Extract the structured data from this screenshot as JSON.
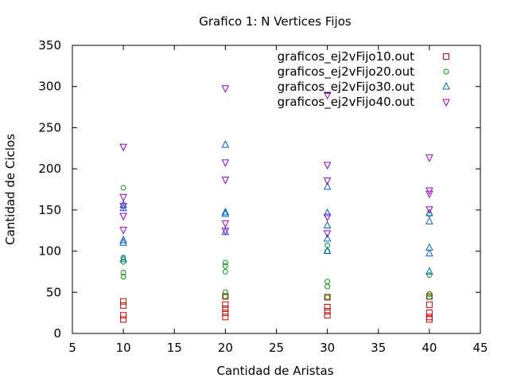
{
  "chart_data": {
    "type": "scatter",
    "title": "Grafico 1: N Vertices Fijos",
    "xlabel": "Cantidad de Aristas",
    "ylabel": "Cantidad de Ciclos",
    "xlim": [
      5,
      45
    ],
    "ylim": [
      0,
      350
    ],
    "xticks": [
      "5",
      "10",
      "15",
      "20",
      "25",
      "30",
      "35",
      "40",
      "45"
    ],
    "yticks": [
      "0",
      "50",
      "100",
      "150",
      "200",
      "250",
      "300",
      "350"
    ],
    "grid": false,
    "legend_position": "top-right",
    "series": [
      {
        "name": "graficos_ej2vFijo10.out",
        "color": "#cc0000",
        "marker": "square",
        "points": [
          [
            10,
            17
          ],
          [
            10,
            22
          ],
          [
            10,
            34
          ],
          [
            10,
            39
          ],
          [
            20,
            20
          ],
          [
            20,
            25
          ],
          [
            20,
            30
          ],
          [
            20,
            35
          ],
          [
            20,
            45
          ],
          [
            30,
            22
          ],
          [
            30,
            27
          ],
          [
            30,
            32
          ],
          [
            30,
            44
          ],
          [
            40,
            17
          ],
          [
            40,
            20
          ],
          [
            40,
            25
          ],
          [
            40,
            35
          ],
          [
            40,
            45
          ]
        ]
      },
      {
        "name": "graficos_ej2vFijo20.out",
        "color": "#009900",
        "marker": "circle",
        "points": [
          [
            10,
            69
          ],
          [
            10,
            74
          ],
          [
            10,
            87
          ],
          [
            10,
            92
          ],
          [
            10,
            177
          ],
          [
            20,
            45
          ],
          [
            20,
            50
          ],
          [
            20,
            75
          ],
          [
            20,
            82
          ],
          [
            20,
            86
          ],
          [
            30,
            44
          ],
          [
            30,
            57
          ],
          [
            30,
            63
          ],
          [
            30,
            100
          ],
          [
            30,
            107
          ],
          [
            40,
            44
          ],
          [
            40,
            48
          ],
          [
            40,
            71
          ],
          [
            40,
            145
          ]
        ]
      },
      {
        "name": "graficos_ej2vFijo30.out",
        "color": "#0066cc",
        "marker": "triangle-up",
        "points": [
          [
            10,
            90
          ],
          [
            10,
            110
          ],
          [
            10,
            113
          ],
          [
            10,
            152
          ],
          [
            10,
            156
          ],
          [
            20,
            123
          ],
          [
            20,
            145
          ],
          [
            20,
            147
          ],
          [
            20,
            229
          ],
          [
            30,
            100
          ],
          [
            30,
            115
          ],
          [
            30,
            131
          ],
          [
            30,
            146
          ],
          [
            30,
            178
          ],
          [
            40,
            75
          ],
          [
            40,
            97
          ],
          [
            40,
            104
          ],
          [
            40,
            136
          ],
          [
            40,
            146
          ]
        ]
      },
      {
        "name": "graficos_ej2vFijo40.out",
        "color": "#9900cc",
        "marker": "triangle-down",
        "points": [
          [
            10,
            126
          ],
          [
            10,
            143
          ],
          [
            10,
            155
          ],
          [
            10,
            166
          ],
          [
            10,
            227
          ],
          [
            20,
            125
          ],
          [
            20,
            134
          ],
          [
            20,
            187
          ],
          [
            20,
            208
          ],
          [
            20,
            298
          ],
          [
            30,
            122
          ],
          [
            30,
            142
          ],
          [
            30,
            186
          ],
          [
            30,
            205
          ],
          [
            30,
            290
          ],
          [
            40,
            151
          ],
          [
            40,
            170
          ],
          [
            40,
            174
          ],
          [
            40,
            214
          ]
        ]
      }
    ]
  }
}
